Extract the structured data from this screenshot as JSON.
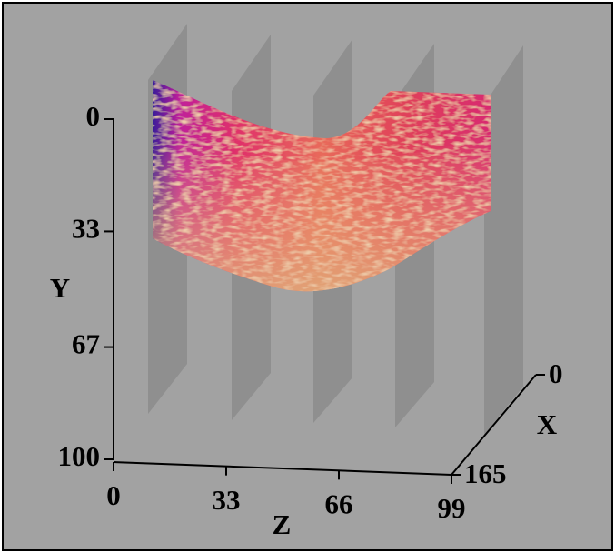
{
  "chart_data": {
    "type": "volume3d",
    "ylabel": "Y",
    "ylim": [
      0,
      100
    ],
    "yticks": [
      0,
      33,
      67,
      100
    ],
    "zlabel": "Z",
    "zlim": [
      0,
      99
    ],
    "zticks": [
      0,
      33,
      66,
      99
    ],
    "xlabel": "X",
    "xlim": [
      0,
      165
    ],
    "xticks": [
      0,
      165
    ]
  }
}
